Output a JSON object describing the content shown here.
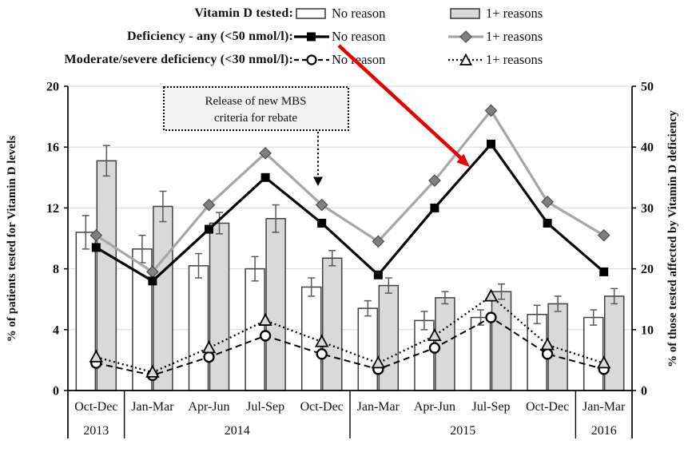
{
  "legend": {
    "rows": [
      {
        "label": "Vitamin D tested:",
        "no_reason": "No reason",
        "reasons": "1+ reasons"
      },
      {
        "label": "Deficiency - any (<50 nmol/l):",
        "no_reason": "No reason",
        "reasons": "1+ reasons"
      },
      {
        "label": "Moderate/severe deficiency (<30 nmol/l):",
        "no_reason": "No reason",
        "reasons": "1+ reasons"
      }
    ]
  },
  "colors": {
    "bar_no_reason": "#ffffff",
    "bar_reasons": "#d9d9d9",
    "bar_border": "#404040",
    "error_bar": "#595959",
    "line_black": "#000000",
    "line_gray": "#a6a6a6",
    "diamond_fill": "#808080",
    "diamond_border": "#4d4d4d",
    "circle_fill": "#ffffff",
    "triangle_fill": "#d9d9d9",
    "gridline": "#d9d9d9",
    "annotation_fill": "#f2f2f2",
    "red_arrow": "#e60000"
  },
  "chart_data": {
    "type": "bar+line combo, dual axis",
    "categories": [
      "Oct-Dec",
      "Jan-Mar",
      "Apr-Jun",
      "Jul-Sep",
      "Oct-Dec",
      "Jan-Mar",
      "Apr-Jun",
      "Jul-Sep",
      "Oct-Dec",
      "Jan-Mar"
    ],
    "year_groups": [
      {
        "label": "2013",
        "span": 1
      },
      {
        "label": "2014",
        "span": 4
      },
      {
        "label": "2015",
        "span": 4
      },
      {
        "label": "2016",
        "span": 1
      }
    ],
    "left_axis": {
      "label": "% of patients tested for Vitamin D levels",
      "ticks": [
        0,
        4,
        8,
        12,
        16,
        20
      ],
      "range": [
        0,
        20
      ]
    },
    "right_axis": {
      "label": "% of those tested affected by Vitamin D deficiency",
      "ticks": [
        0,
        10,
        20,
        30,
        40,
        50
      ],
      "range": [
        0,
        50
      ]
    },
    "bar_series": [
      {
        "name": "Vitamin D tested - No reason",
        "axis": "left",
        "values": [
          10.4,
          9.3,
          8.2,
          8.0,
          6.8,
          5.4,
          4.6,
          4.8,
          5.0,
          4.8
        ],
        "errors": [
          1.1,
          0.9,
          0.8,
          0.8,
          0.6,
          0.5,
          0.6,
          0.5,
          0.6,
          0.5
        ]
      },
      {
        "name": "Vitamin D tested - 1+ reasons",
        "axis": "left",
        "values": [
          15.1,
          12.1,
          11.0,
          11.3,
          8.7,
          6.9,
          6.1,
          6.5,
          5.7,
          6.2
        ],
        "errors": [
          1.0,
          1.0,
          0.7,
          0.9,
          0.5,
          0.5,
          0.4,
          0.5,
          0.5,
          0.5
        ]
      }
    ],
    "line_series": [
      {
        "name": "Deficiency - any (<50 nmol/l) - No reason",
        "axis": "right",
        "marker": "filled-square",
        "style": "solid-black",
        "values": [
          23.5,
          18,
          26.5,
          35,
          27.5,
          19,
          30,
          40.5,
          27.5,
          19.5
        ]
      },
      {
        "name": "Deficiency - any (<50 nmol/l) - 1+ reasons",
        "axis": "right",
        "marker": "filled-diamond",
        "style": "solid-gray",
        "values": [
          25.5,
          19.5,
          30.5,
          39,
          30.5,
          24.5,
          34.5,
          46,
          31,
          25.5
        ]
      },
      {
        "name": "Moderate/severe deficiency (<30 nmol/l) - No reason",
        "axis": "right",
        "marker": "open-circle",
        "style": "dashed",
        "values": [
          4.5,
          2.5,
          5.5,
          9,
          6,
          3.5,
          7,
          12,
          6,
          3.5
        ]
      },
      {
        "name": "Moderate/severe deficiency (<30 nmol/l) - 1+ reasons",
        "axis": "right",
        "marker": "open-triangle",
        "style": "dotted",
        "values": [
          5.5,
          3,
          7,
          11.5,
          8,
          4.5,
          9,
          15.5,
          7.5,
          4.5
        ]
      }
    ],
    "annotation": {
      "line1": "Release of new MBS",
      "line2": "criteria for rebate"
    }
  }
}
